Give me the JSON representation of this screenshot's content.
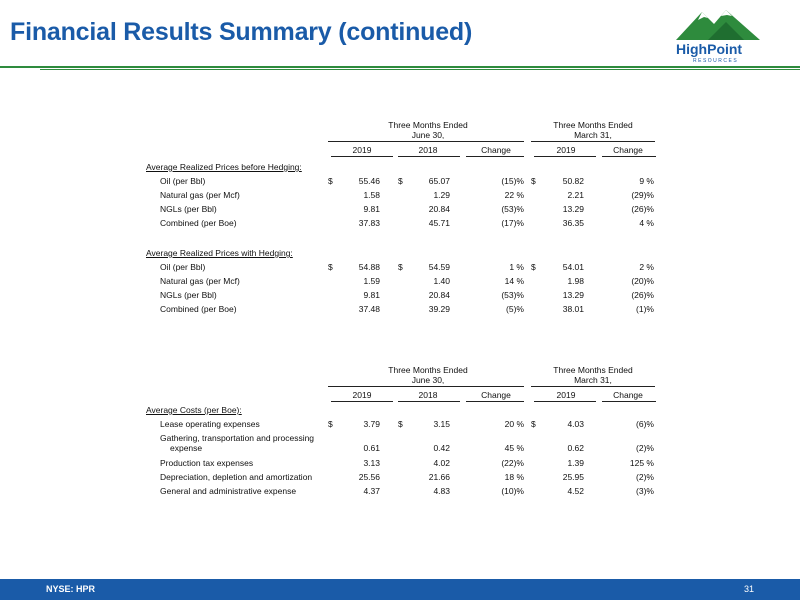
{
  "header": {
    "title": "Financial Results Summary (continued)",
    "logo_name": "HighPoint",
    "logo_sub": "RESOURCES"
  },
  "footer": {
    "ticker": "NYSE: HPR",
    "page": "31"
  },
  "colors": {
    "brand_blue": "#1a5ba8",
    "brand_green": "#2e8b3d"
  },
  "prices": {
    "group1": "Three Months Ended June 30,",
    "group1_l1": "Three Months Ended",
    "group1_l2": "June 30,",
    "group2_l1": "Three Months Ended",
    "group2_l2": "March 31,",
    "cols": [
      "2019",
      "2018",
      "Change",
      "2019",
      "Change"
    ],
    "sections": [
      {
        "title": "Average Realized Prices before Hedging:",
        "rows": [
          {
            "label": "Oil (per Bbl)",
            "d1": "$",
            "a": "55.46",
            "d2": "$",
            "b": "65.07",
            "chg": "(15)%",
            "d3": "$",
            "c": "50.82",
            "chg2": "9 %"
          },
          {
            "label": "Natural gas (per Mcf)",
            "d1": "",
            "a": "1.58",
            "d2": "",
            "b": "1.29",
            "chg": "22 %",
            "d3": "",
            "c": "2.21",
            "chg2": "(29)%"
          },
          {
            "label": "NGLs (per Bbl)",
            "d1": "",
            "a": "9.81",
            "d2": "",
            "b": "20.84",
            "chg": "(53)%",
            "d3": "",
            "c": "13.29",
            "chg2": "(26)%"
          },
          {
            "label": "Combined (per Boe)",
            "d1": "",
            "a": "37.83",
            "d2": "",
            "b": "45.71",
            "chg": "(17)%",
            "d3": "",
            "c": "36.35",
            "chg2": "4 %"
          }
        ]
      },
      {
        "title": "Average Realized Prices with Hedging:",
        "rows": [
          {
            "label": "Oil (per Bbl)",
            "d1": "$",
            "a": "54.88",
            "d2": "$",
            "b": "54.59",
            "chg": "1 %",
            "d3": "$",
            "c": "54.01",
            "chg2": "2 %"
          },
          {
            "label": "Natural gas (per Mcf)",
            "d1": "",
            "a": "1.59",
            "d2": "",
            "b": "1.40",
            "chg": "14 %",
            "d3": "",
            "c": "1.98",
            "chg2": "(20)%"
          },
          {
            "label": "NGLs (per Bbl)",
            "d1": "",
            "a": "9.81",
            "d2": "",
            "b": "20.84",
            "chg": "(53)%",
            "d3": "",
            "c": "13.29",
            "chg2": "(26)%"
          },
          {
            "label": "Combined (per Boe)",
            "d1": "",
            "a": "37.48",
            "d2": "",
            "b": "39.29",
            "chg": "(5)%",
            "d3": "",
            "c": "38.01",
            "chg2": "(1)%"
          }
        ]
      }
    ]
  },
  "costs": {
    "group1_l1": "Three Months Ended",
    "group1_l2": "June 30,",
    "group2_l1": "Three Months Ended",
    "group2_l2": "March 31,",
    "cols": [
      "2019",
      "2018",
      "Change",
      "2019",
      "Change"
    ],
    "title": "Average Costs (per Boe):",
    "rows": [
      {
        "label": "Lease operating expenses",
        "d1": "$",
        "a": "3.79",
        "d2": "$",
        "b": "3.15",
        "chg": "20 %",
        "d3": "$",
        "c": "4.03",
        "chg2": "(6)%"
      },
      {
        "label": "Gathering, transportation and processing",
        "label2": "expense",
        "d1": "",
        "a": "0.61",
        "d2": "",
        "b": "0.42",
        "chg": "45 %",
        "d3": "",
        "c": "0.62",
        "chg2": "(2)%"
      },
      {
        "label": "Production tax expenses",
        "d1": "",
        "a": "3.13",
        "d2": "",
        "b": "4.02",
        "chg": "(22)%",
        "d3": "",
        "c": "1.39",
        "chg2": "125 %"
      },
      {
        "label": "Depreciation, depletion and amortization",
        "d1": "",
        "a": "25.56",
        "d2": "",
        "b": "21.66",
        "chg": "18 %",
        "d3": "",
        "c": "25.95",
        "chg2": "(2)%"
      },
      {
        "label": "General and administrative expense",
        "d1": "",
        "a": "4.37",
        "d2": "",
        "b": "4.83",
        "chg": "(10)%",
        "d3": "",
        "c": "4.52",
        "chg2": "(3)%"
      }
    ]
  }
}
